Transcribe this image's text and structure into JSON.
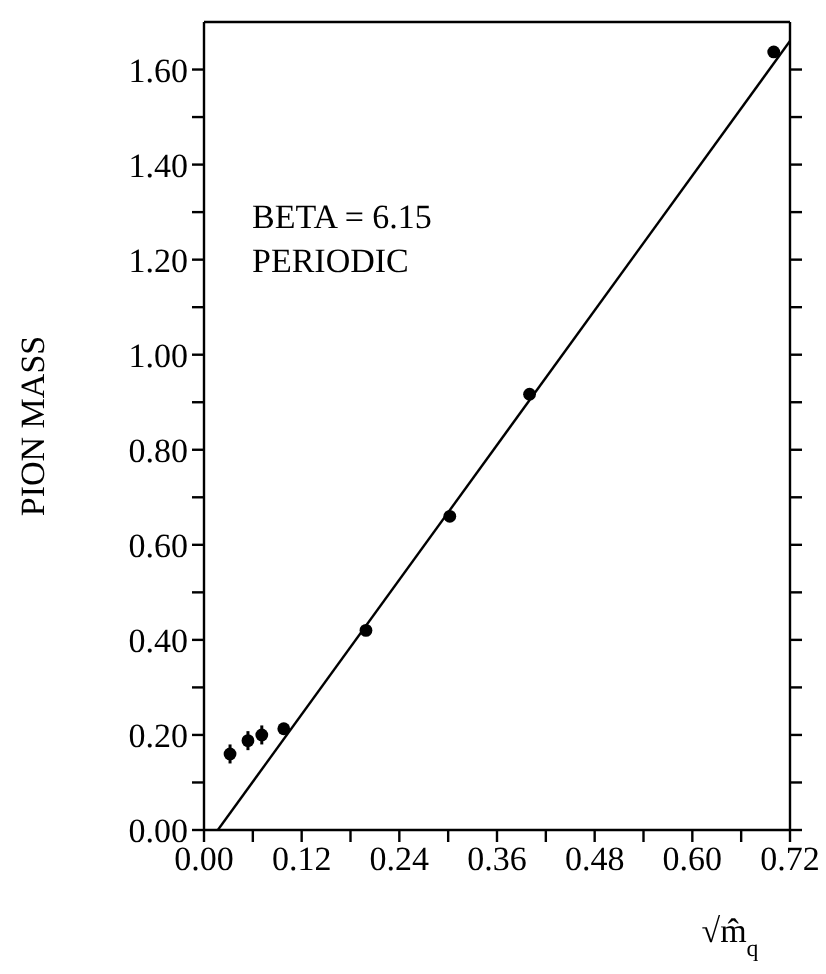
{
  "chart_data": {
    "type": "scatter",
    "xlabel": "√m̂$_{q}$",
    "ylabel": "PION MASS",
    "xlim": [
      0,
      0.72
    ],
    "xticks": [
      {
        "value": 0,
        "label": "0.00"
      },
      {
        "value": 0.06,
        "label": null
      },
      0.12,
      {
        "value": 0.18,
        "label": null
      },
      0.24,
      {
        "value": 0.3,
        "label": null
      },
      0.36,
      {
        "value": 0.42,
        "label": null
      },
      0.48,
      {
        "value": 0.54,
        "label": null
      },
      {
        "value": 0.6,
        "label": "0.60"
      },
      {
        "value": 0.66,
        "label": null
      },
      0.72
    ],
    "ylim": [
      0,
      1.7
    ],
    "yticks": [
      {
        "value": 0,
        "label": "0.00"
      },
      {
        "value": 0.1,
        "label": null
      },
      {
        "value": 0.2,
        "label": "0.20"
      },
      {
        "value": 0.3,
        "label": null
      },
      {
        "value": 0.4,
        "label": "0.40"
      },
      {
        "value": 0.5,
        "label": null
      },
      {
        "value": 0.6,
        "label": "0.60"
      },
      {
        "value": 0.7,
        "label": null
      },
      {
        "value": 0.8,
        "label": "0.80"
      },
      {
        "value": 0.9,
        "label": null
      },
      {
        "value": 1.0,
        "label": "1.00"
      },
      {
        "value": 1.1,
        "label": null
      },
      {
        "value": 1.2,
        "label": "1.20"
      },
      {
        "value": 1.3,
        "label": null
      },
      {
        "value": 1.4,
        "label": "1.40"
      },
      {
        "value": 1.5,
        "label": null
      },
      {
        "value": 1.6,
        "label": "1.60"
      }
    ],
    "marker": "circle",
    "annotations": [
      "BETA = 6.15",
      "PERIODIC"
    ],
    "series": [
      {
        "color": "#000000",
        "x": [
          0.032,
          0.054,
          0.071,
          0.098,
          0.199,
          0.302,
          0.4,
          0.7
        ],
        "values": [
          0.16,
          0.188,
          0.2,
          0.213,
          0.42,
          0.66,
          0.917,
          1.637
        ],
        "errors": [
          0.02,
          0.02,
          0.02,
          0.01,
          null,
          null,
          null,
          null
        ]
      },
      {
        "type": "line",
        "color": "#000000",
        "marker": "none",
        "x": [
          0.017,
          0.72
        ],
        "values": [
          0,
          1.66
        ]
      }
    ]
  }
}
